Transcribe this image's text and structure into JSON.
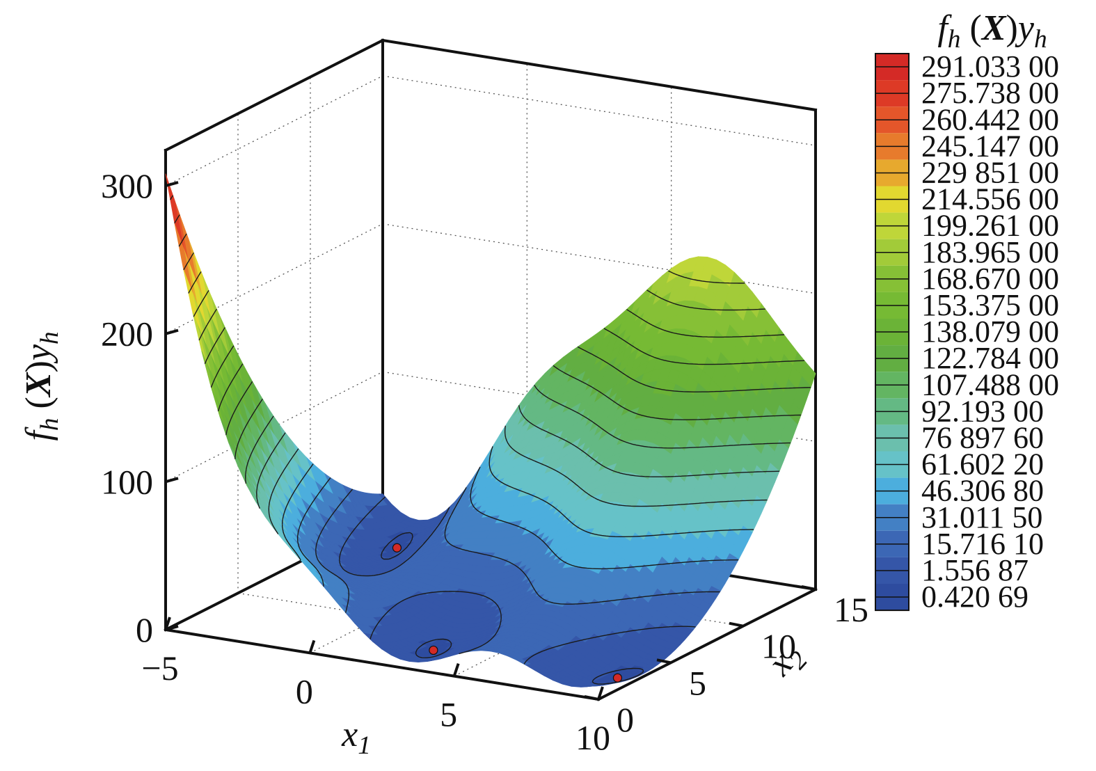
{
  "chart_data": {
    "type": "surface",
    "title": "",
    "xlabel": "x1",
    "ylabel": "x2",
    "zlabel": "f_h(X)y_h",
    "x_ticks": [
      "−5",
      "0",
      "5",
      "10"
    ],
    "y_ticks": [
      "0",
      "5",
      "10",
      "15"
    ],
    "z_ticks": [
      "0",
      "100",
      "200",
      "300"
    ],
    "xlim": [
      -5,
      10
    ],
    "ylim": [
      0,
      15
    ],
    "zlim": [
      0,
      300
    ],
    "grid": true,
    "legend": {
      "title": "f_h(X)y_h",
      "position": "right",
      "levels": [
        {
          "label": "291.033 00",
          "value": 291.033,
          "color": "#d42a26"
        },
        {
          "label": "275.738 00",
          "value": 275.738,
          "color": "#dd3a26"
        },
        {
          "label": "260.442 00",
          "value": 260.442,
          "color": "#e4562a"
        },
        {
          "label": "245.147 00",
          "value": 245.147,
          "color": "#e77b2c"
        },
        {
          "label": "229 851 00",
          "value": 229.851,
          "color": "#e7a92e"
        },
        {
          "label": "214.556 00",
          "value": 214.556,
          "color": "#e2d830"
        },
        {
          "label": "199.261 00",
          "value": 199.261,
          "color": "#bfd639"
        },
        {
          "label": "183.965 00",
          "value": 183.965,
          "color": "#a2cb39"
        },
        {
          "label": "168.670 00",
          "value": 168.67,
          "color": "#86c036"
        },
        {
          "label": "153.375 00",
          "value": 153.375,
          "color": "#76ba34"
        },
        {
          "label": "138.079 00",
          "value": 138.079,
          "color": "#6bb337"
        },
        {
          "label": "122.784 00",
          "value": 122.784,
          "color": "#62ae42"
        },
        {
          "label": "107.488 00",
          "value": 107.488,
          "color": "#63b562"
        },
        {
          "label": "92.193 00",
          "value": 92.193,
          "color": "#64b984"
        },
        {
          "label": "76 897 60",
          "value": 76.8976,
          "color": "#6bbfad"
        },
        {
          "label": "61.602 20",
          "value": 61.6022,
          "color": "#66c2c8"
        },
        {
          "label": "46.306 80",
          "value": 46.3068,
          "color": "#4caedd"
        },
        {
          "label": "31.011 50",
          "value": 31.0115,
          "color": "#4380c4"
        },
        {
          "label": "15.716 10",
          "value": 15.7161,
          "color": "#3c67b5"
        },
        {
          "label": "1.556 87",
          "value": 1.55687,
          "color": "#3556a8"
        },
        {
          "label": "0.420 69",
          "value": 0.42069,
          "color": "#2e4c9f"
        }
      ]
    },
    "minima": [
      {
        "x1": -3.14,
        "x2": 12.275,
        "z": 0.398
      },
      {
        "x1": 3.14,
        "x2": 2.275,
        "z": 0.398
      },
      {
        "x1": 9.42,
        "x2": 2.475,
        "z": 0.398
      }
    ]
  }
}
